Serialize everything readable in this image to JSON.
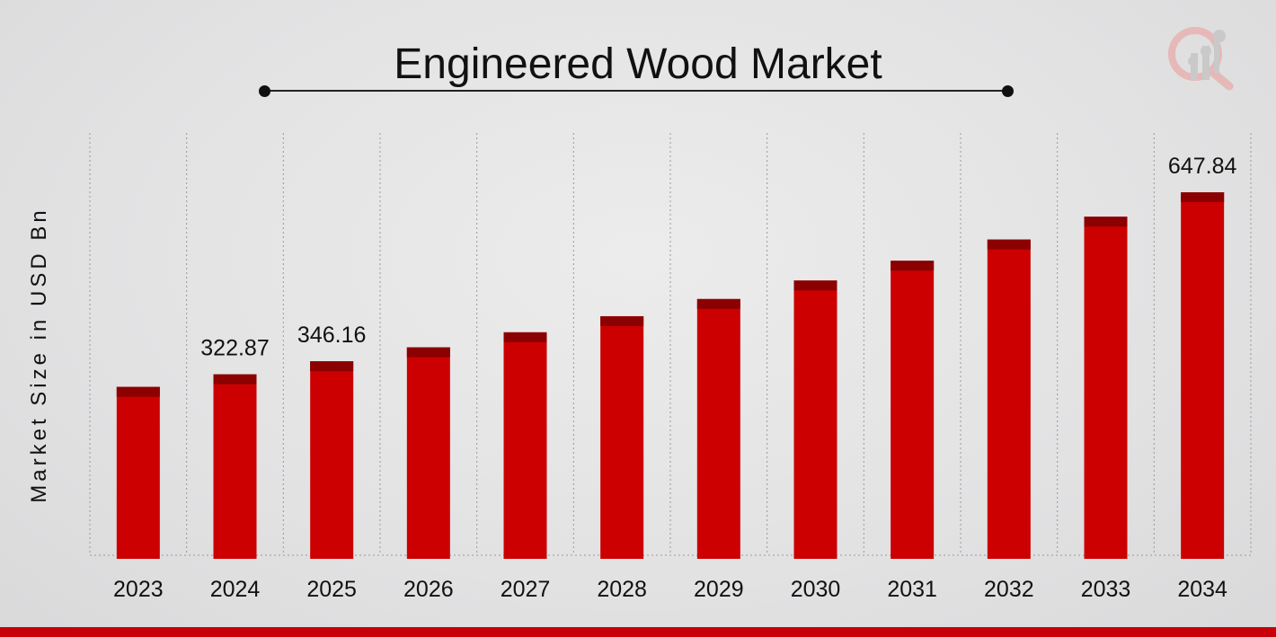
{
  "chart_data": {
    "type": "bar",
    "title": "Engineered Wood Market",
    "xlabel": "",
    "ylabel": "Market Size in USD Bn",
    "categories": [
      "2023",
      "2024",
      "2025",
      "2026",
      "2027",
      "2028",
      "2029",
      "2030",
      "2031",
      "2032",
      "2033",
      "2034"
    ],
    "values": [
      300.5,
      322.87,
      346.16,
      371.1,
      397.9,
      426.6,
      457.3,
      490.3,
      525.6,
      563.5,
      604.2,
      647.84
    ],
    "data_labels": [
      null,
      "322.87",
      "346.16",
      null,
      null,
      null,
      null,
      null,
      null,
      null,
      null,
      "647.84"
    ],
    "ylim": [
      0,
      700
    ],
    "grid": "vertical dotted",
    "legend": "none",
    "colors": {
      "bar": "#cc0000",
      "bar_cap": "#8b0000",
      "accent": "#c8000a"
    }
  }
}
